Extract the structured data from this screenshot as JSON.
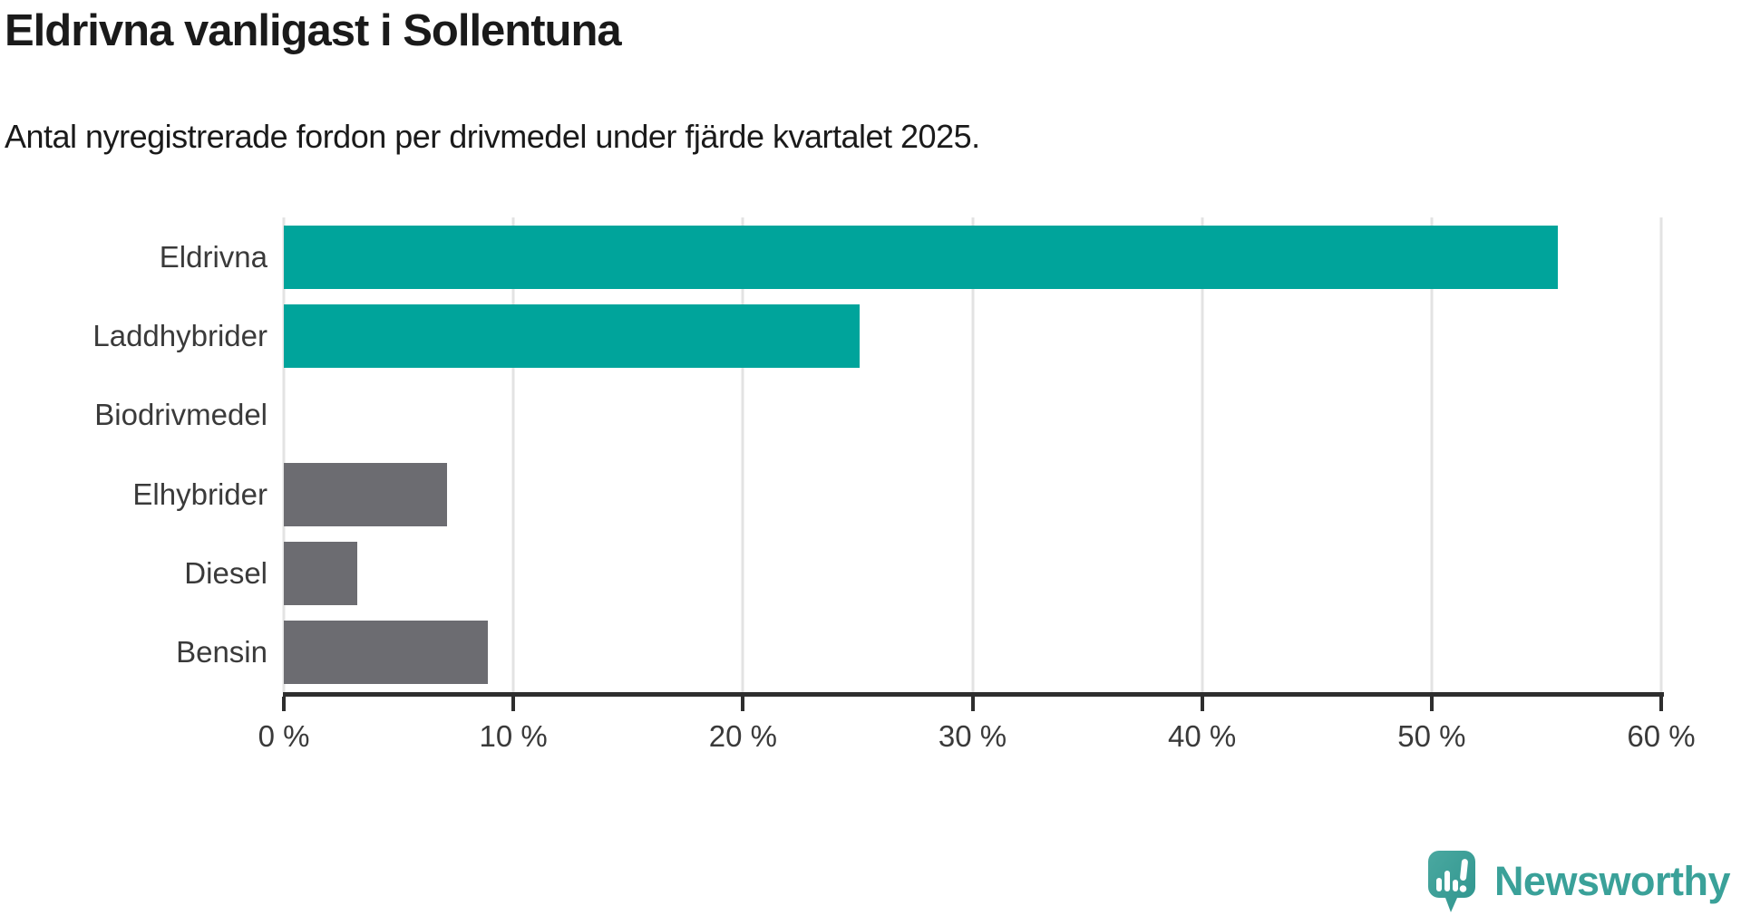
{
  "title": "Eldrivna vanligast i Sollentuna",
  "subtitle": "Antal nyregistrerade fordon per drivmedel under fjärde kvartalet 2025.",
  "chart_data": {
    "type": "bar",
    "orientation": "horizontal",
    "title": "Eldrivna vanligast i Sollentuna",
    "subtitle": "Antal nyregistrerade fordon per drivmedel under fjärde kvartalet 2025.",
    "categories": [
      "Eldrivna",
      "Laddhybrider",
      "Biodrivmedel",
      "Elhybrider",
      "Diesel",
      "Bensin"
    ],
    "values": [
      55.5,
      25.1,
      0,
      7.1,
      3.2,
      8.9
    ],
    "unit": "%",
    "xlim": [
      0,
      60
    ],
    "x_tick_values": [
      0,
      10,
      20,
      30,
      40,
      50,
      60
    ],
    "x_tick_labels": [
      "0 %",
      "10 %",
      "20 %",
      "30 %",
      "40 %",
      "50 %",
      "60 %"
    ],
    "bar_colors": [
      "#00a49b",
      "#00a49b",
      "#6c6c71",
      "#6c6c71",
      "#6c6c71",
      "#6c6c71"
    ],
    "highlight_color": "#00a49b",
    "default_color": "#6c6c71",
    "grid": true,
    "legend": false
  },
  "colors": {
    "background": "#ffffff",
    "title_text": "#1a1a1a",
    "label_text": "#3a3a3a",
    "gridline": "#e3e3e3",
    "axis_line": "#2e2e2e",
    "logo_teal": "#3aa199"
  },
  "branding": {
    "logo_text": "Newsworthy",
    "logo_icon": "chart-speech-bubble-icon"
  }
}
